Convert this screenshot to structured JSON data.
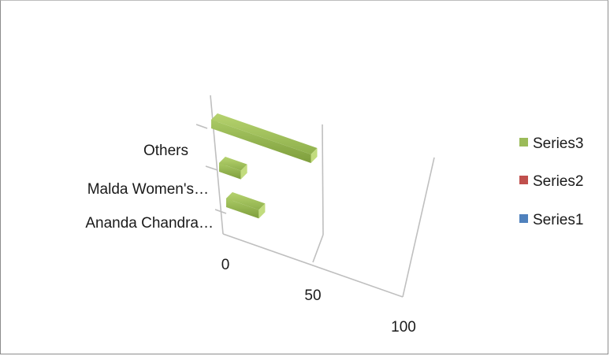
{
  "chart_data": {
    "type": "bar",
    "orientation": "horizontal",
    "style": "3d",
    "categories": [
      "Ananda Chandra…",
      "Malda Women's…",
      "Others"
    ],
    "series": [
      {
        "name": "Series1",
        "values": [
          0,
          0,
          0
        ],
        "color": "#4f81bd"
      },
      {
        "name": "Series2",
        "values": [
          0,
          0,
          0
        ],
        "color": "#c0504d"
      },
      {
        "name": "Series3",
        "values": [
          18,
          12,
          55
        ],
        "color": "#9bbb59"
      }
    ],
    "xlim": [
      0,
      100
    ],
    "x_ticks": [
      "0",
      "50",
      "100"
    ],
    "legend": "right",
    "grid": true
  }
}
